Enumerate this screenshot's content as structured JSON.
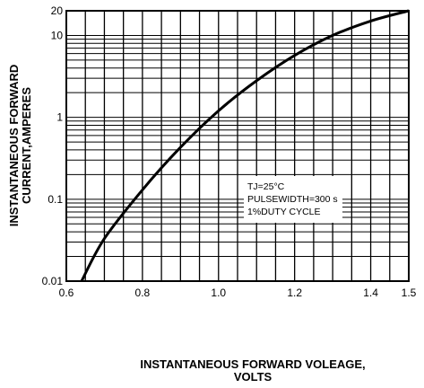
{
  "chart_data": {
    "type": "line",
    "title": "",
    "xlabel": [
      "INSTANTANEOUS FORWARD VOLEAGE,",
      "VOLTS"
    ],
    "ylabel": [
      "INSTANTANEOUS FORWARD",
      "CURRENT,AMPERES"
    ],
    "x_scale": "linear",
    "y_scale": "log",
    "xlim": [
      0.6,
      1.5
    ],
    "ylim": [
      0.01,
      20
    ],
    "x_ticks": [
      "0.6",
      "0.8",
      "1.0",
      "1.2",
      "1.4",
      "1.5"
    ],
    "y_ticks": [
      "0.01",
      "0.1",
      "1",
      "10",
      "20"
    ],
    "grid": true,
    "annotation": [
      "TJ=25°C",
      "PULSEWIDTH=300  s",
      "1%DUTY CYCLE"
    ],
    "series": [
      {
        "x": [
          0.64,
          0.7,
          0.8,
          0.9,
          1.0,
          1.1,
          1.2,
          1.3,
          1.4,
          1.5
        ],
        "y": [
          0.01,
          0.033,
          0.13,
          0.43,
          1.2,
          2.8,
          5.7,
          10,
          15,
          20
        ]
      }
    ]
  }
}
